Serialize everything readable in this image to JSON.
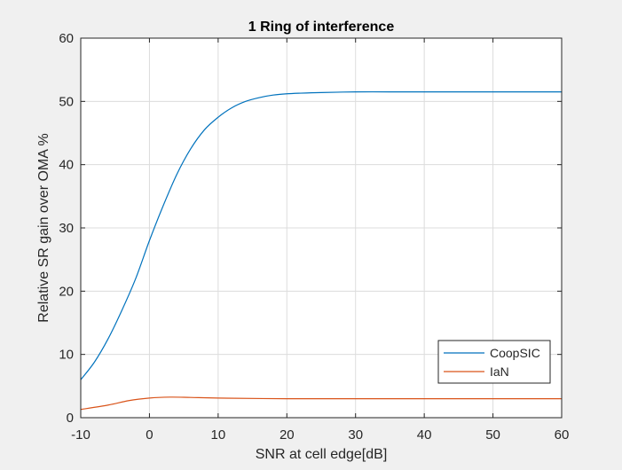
{
  "chart_data": {
    "type": "line",
    "title": "1 Ring of interference",
    "xlabel": "SNR at cell edge[dB]",
    "ylabel": "Relative SR gain over OMA %",
    "xlim": [
      -10,
      60
    ],
    "ylim": [
      0,
      60
    ],
    "xticks": [
      -10,
      0,
      10,
      20,
      30,
      40,
      50,
      60
    ],
    "yticks": [
      0,
      10,
      20,
      30,
      40,
      50,
      60
    ],
    "grid": true,
    "legend_position": "bottom-right",
    "series": [
      {
        "name": "CoopSIC",
        "color": "#0072BD",
        "x": [
          -10,
          -8,
          -6,
          -4,
          -2,
          0,
          2,
          4,
          6,
          8,
          10,
          12,
          14,
          16,
          18,
          20,
          22,
          25,
          30,
          35,
          40,
          50,
          60
        ],
        "y": [
          6,
          8.8,
          12.5,
          17,
          22,
          28,
          33.5,
          38.5,
          42.5,
          45.5,
          47.5,
          49.0,
          50.0,
          50.6,
          51.0,
          51.2,
          51.3,
          51.4,
          51.5,
          51.5,
          51.5,
          51.5,
          51.5
        ]
      },
      {
        "name": "IaN",
        "color": "#D95319",
        "x": [
          -10,
          -6,
          -3,
          0,
          3,
          6,
          10,
          20,
          30,
          40,
          50,
          60
        ],
        "y": [
          1.3,
          2.0,
          2.7,
          3.1,
          3.25,
          3.2,
          3.1,
          3.0,
          3.0,
          3.0,
          3.0,
          3.0
        ]
      }
    ]
  }
}
